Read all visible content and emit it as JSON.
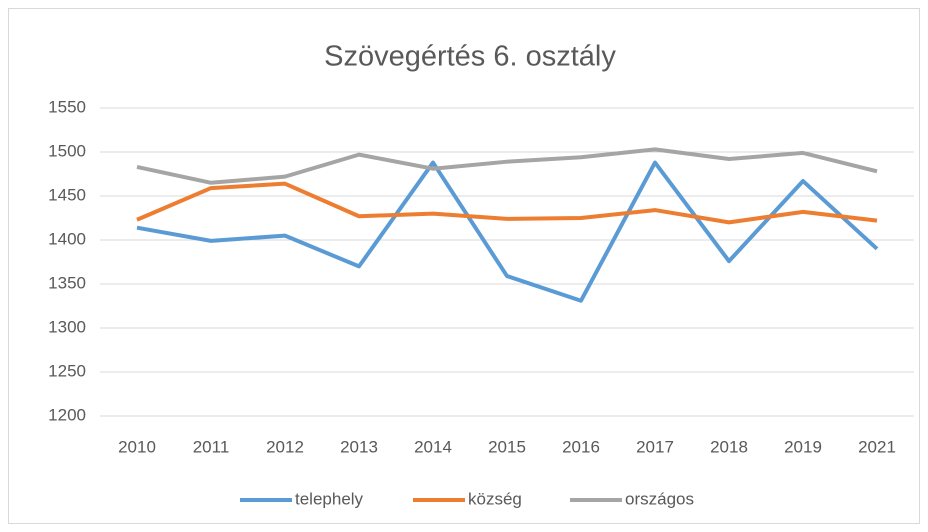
{
  "chart_data": {
    "type": "line",
    "title": "Szövegértés 6. osztály",
    "categories": [
      "2010",
      "2011",
      "2012",
      "2013",
      "2014",
      "2015",
      "2016",
      "2017",
      "2018",
      "2019",
      "2021"
    ],
    "series": [
      {
        "name": "telephely",
        "color": "#5b9bd5",
        "values": [
          1414,
          1399,
          1405,
          1370,
          1488,
          1359,
          1331,
          1488,
          1376,
          1467,
          1390
        ]
      },
      {
        "name": "község",
        "color": "#ed7d31",
        "values": [
          1423,
          1459,
          1464,
          1427,
          1430,
          1424,
          1425,
          1434,
          1420,
          1432,
          1422
        ]
      },
      {
        "name": "országos",
        "color": "#a5a5a5",
        "values": [
          1483,
          1465,
          1472,
          1497,
          1481,
          1489,
          1494,
          1503,
          1492,
          1499,
          1478
        ]
      }
    ],
    "ylim": [
      1200,
      1550
    ],
    "yticks": [
      1200,
      1250,
      1300,
      1350,
      1400,
      1450,
      1500,
      1550
    ],
    "grid": true,
    "legend": "bottom"
  }
}
